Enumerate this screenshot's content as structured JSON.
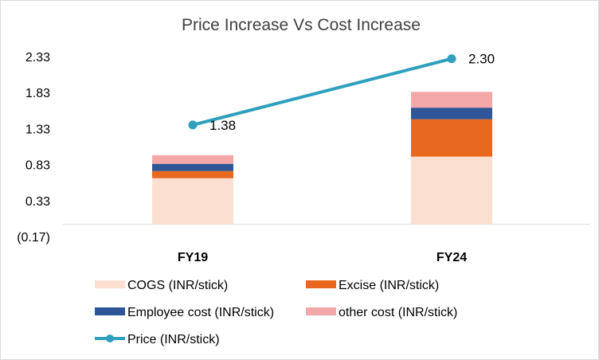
{
  "chart_data": {
    "type": "bar",
    "stacked": true,
    "title": "Price Increase Vs Cost Increase",
    "xlabel": "",
    "ylabel": "",
    "categories": [
      "FY19",
      "FY24"
    ],
    "ylim": [
      -0.17,
      2.33
    ],
    "yticks": [
      -0.17,
      0.33,
      0.83,
      1.33,
      1.83,
      2.33
    ],
    "ytick_labels": [
      "(0.17)",
      "0.33",
      "0.83",
      "1.33",
      "1.83",
      "2.33"
    ],
    "grid": false,
    "legend_position": "bottom",
    "series": [
      {
        "name": "COGS (INR/stick)",
        "type": "bar",
        "color": "#fbe0d2",
        "values": [
          0.64,
          0.94
        ]
      },
      {
        "name": "Excise (INR/stick)",
        "type": "bar",
        "color": "#e8681e",
        "values": [
          0.1,
          0.52
        ]
      },
      {
        "name": "Employee cost (INR/stick)",
        "type": "bar",
        "color": "#2e5597",
        "values": [
          0.1,
          0.16
        ]
      },
      {
        "name": "other cost (INR/stick)",
        "type": "bar",
        "color": "#f4a7a7",
        "values": [
          0.12,
          0.22
        ]
      },
      {
        "name": "Price (INR/stick)",
        "type": "line",
        "color": "#2e9fbd",
        "values": [
          1.38,
          2.3
        ],
        "data_labels": [
          "1.38",
          "2.30"
        ]
      }
    ]
  }
}
